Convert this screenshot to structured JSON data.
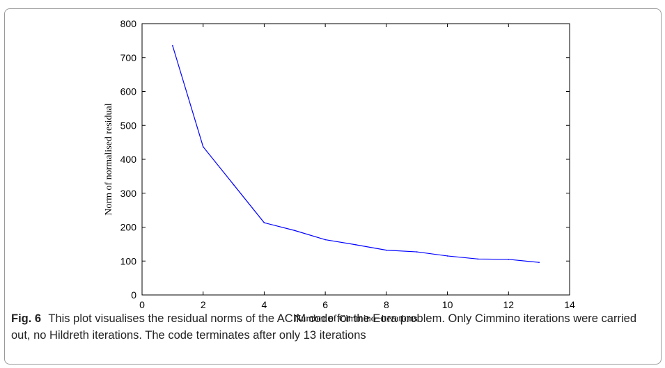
{
  "chart_data": {
    "type": "line",
    "x": [
      1,
      2,
      3,
      4,
      5,
      6,
      7,
      8,
      9,
      10,
      11,
      12,
      13
    ],
    "series": [
      {
        "values": [
          735,
          437,
          325,
          213,
          190,
          163,
          148,
          132,
          127,
          115,
          106,
          105,
          96
        ],
        "color": "#0000ff"
      }
    ],
    "xlabel": "Number of Cimmino−iterations",
    "ylabel": "Norm of normalised residual",
    "xlim": [
      0,
      14
    ],
    "ylim": [
      0,
      800
    ],
    "xticks": [
      0,
      2,
      4,
      6,
      8,
      10,
      12,
      14
    ],
    "yticks": [
      0,
      100,
      200,
      300,
      400,
      500,
      600,
      700,
      800
    ],
    "grid": false
  },
  "caption": {
    "label": "Fig. 6",
    "text": "This plot visualises the residual norms of the ACIM code for the Eora problem. Only Cimmino iterations were carried out, no Hildreth iterations. The code terminates after only 13 iterations"
  }
}
